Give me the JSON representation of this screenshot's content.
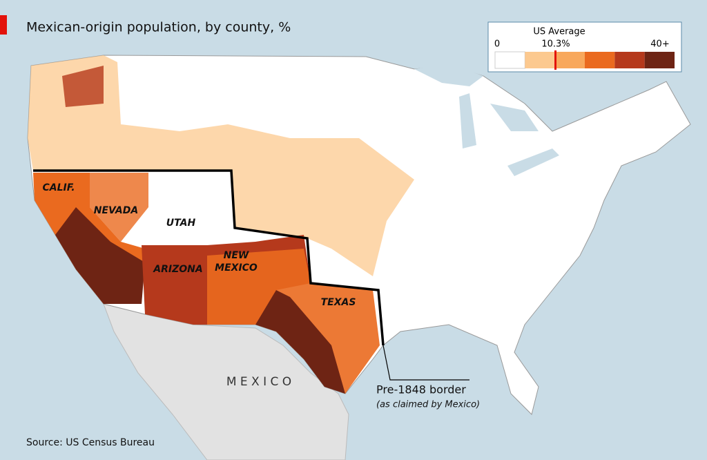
{
  "header": {
    "title": "Mexican-origin population, by county, %"
  },
  "legend": {
    "title": "US Average",
    "min_label": "0",
    "average_label": "10.3%",
    "max_label": "40+",
    "colors": [
      "#ffffff",
      "#fcc98f",
      "#f8a85c",
      "#ea6a1f",
      "#b5391c",
      "#6e2414"
    ],
    "average_marker_color": "#e3120b"
  },
  "map": {
    "state_labels": [
      [
        "CALIF."
      ],
      [
        "NEVADA"
      ],
      [
        "UTAH"
      ],
      [
        "ARIZONA"
      ],
      [
        "NEW",
        "MEXICO"
      ],
      [
        "TEXAS"
      ]
    ],
    "country_label": "M E X I C O",
    "annotation": {
      "title": "Pre-1848 border",
      "subtitle": "(as claimed by Mexico)"
    }
  },
  "footer": {
    "source": "Source: US Census Bureau"
  }
}
